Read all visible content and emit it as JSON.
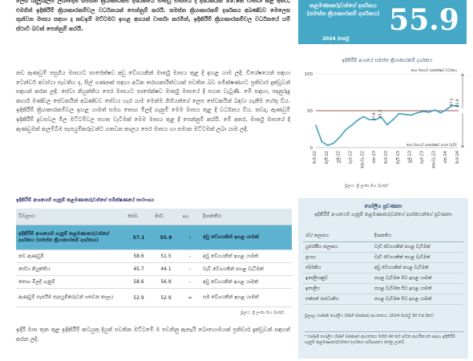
{
  "paragraphs": {
    "p1": "ලෙස බැලූබැල්ම ලබාදෙන සමස්ත ක්‍රියාකාරකම් දර්ශකයේ මාර්තු මාසයේ දී දර්ශකයක 55.9ක් වාර්තා කළ අතර, එමගින් ඉදිකිරීම් ක්‍රියාකාරකම්වල වර්ධනයක් පෙන්නුම් කරයි. සමස්ත ක්‍රියාකාරකම් දර්ශකය අඛණ්ඩව මෙලෙස තුන්වන මාසය සඳහා ද කඩඉම් මට්ටමට ඉහළ අගයක් වාර්තා කරමින්, ඉදිකිරීම් ක්‍රියාකාරකම්වල වර්ධනයේ යම් ස්ථාවී බවක් පෙන්නුම් කරයි.",
    "p2": "නව ඇණවුම් පසුගිය මාසයට සාපේක්ෂව අඩු වේගයකින් මාර්තු මාසය තුළ දී ඉහළ යාම ලදී. විශේෂයෙන් සඳහා ටෙන්ඩර් අවස්ථා පැවතිය ද, සිල් ගණනක් සඳහා අධික තරඟකාරිත්වයක් පවතින බව සමීක්ෂණයට ප්‍රතිචාර දැක්වූවන් සඳහන් කරන ලදී. සේවා නියුක්තිය පෙර මාසයට සාපේක්ෂව මාර්තු මාසයේ දී පහත වැටුණි. මේ සඳහා, පදනුරුදු කාර්ය මණ්ඩල සේවකයින් අඛණ්ඩව සේවය හැර යාම මෙන්ම ගිහියන්ගේ ලෙස සේවකයින් බඳවා ගැනීම හේතු විය. ඉදිකිරීම් ක්‍රියාකාරකම්වල ඉහළ යාමත් සමග තොග මිලදී ගැනුම් මෙම මාසය තුළ දී වර්ධනය විය. තවද, ඇණවුම් ඉදිකිරීම් දුවසවල මිල මට්ටම්වල පහත වැටීමක් මෙම මාසය තුළ දී පෙන්නුම් කරයි. මේ අතර, මාර්තු මාසයේ දී ඇණවුමක් කලම්බීම සැපයුම්කරුවන්ට ගතවන කාලය පෙර මාසය හා සමාන මට්ටමක් ලබා යාම ලදී.",
    "p3": "ඉදිරි මාස තුන තුළ ඉදිකිරීම් කටයුතු දියුත් පවතින මට්ටමේ ම පවතිනු ඇතැයි බොහොමයක් ප්‍රතිචාර දැක්වූවන් සඳහන් කරන ලදී."
  },
  "table": {
    "title": "ඉදිකිරීම් අංශයෙහි ගැනුම් කළමණාකරුවන්ගේ සමීක්ෂණයේ සාරාංශය",
    "headers": [
      "විචල්‍යය",
      "පෙබ.",
      "මාර්.",
      "+/-",
      "දිශානතිය"
    ],
    "rows": [
      [
        "ඉදිකිරීම් අංශයෙහි ගැනුම් කළමණාකරුවන්ගේ දර්ශකය (සමස්ත ක්‍රියාකාරකම් දර්ශකය)",
        "57.1",
        "55.9",
        "-",
        "අඩු වේගයකින් ඉහළ යාමක්"
      ],
      [
        "නව ඇණවුම්",
        "58.6",
        "51.5",
        "-",
        "අඩු වේගයකින් ඉහළ යාමක්"
      ],
      [
        "සේවා නියුක්තිය",
        "45.7",
        "44.1",
        "-",
        "වැඩි වේගයකින් පහළ වැටීමක්"
      ],
      [
        "තොග මිලදී ගැනුම්",
        "58.6",
        "56.9",
        "-",
        "අඩු වේගයකින් ඉහළ යාමක්"
      ],
      [
        "ඇණවුම් සැපයීම සැපයුම්කරුවන් ගතවන කාලය",
        "52.9",
        "52.9",
        "=",
        "සම වේගයකින් ඉහළ යාමක්"
      ]
    ],
    "source": "මූලය: ශ්‍රී ලංකා මහ බැංකුව"
  },
  "callout": {
    "title": "කළමණාකරුවන්ගේ දර්ශකය (සමස්ත ක්‍රියාකාරකම් දර්ශකය)",
    "date": "2024 මාර්තු",
    "value": "55.9"
  },
  "chart_data": {
    "type": "line",
    "title": "ඉදිකිරීම් අංශයේ සමස්ත ක්‍රියාකාරකම් දර්ශකය",
    "x": [
      "මාර්-22",
      "අප්‍රේ-22",
      "මැයි-22",
      "ජූනි-22",
      "ජූලි-22",
      "අගෝ-22",
      "සැප්-22",
      "ඔක්-22",
      "නොවැ-22",
      "දෙසැ-22",
      "ජන-23",
      "පෙබ-23",
      "මාර්-23",
      "අප්‍රේ-23",
      "මැයි-23",
      "ජූනි-23",
      "ජූලි-23",
      "අගෝ-23",
      "සැප්-23",
      "ඔක්-23",
      "නොවැ-23",
      "දෙසැ-23",
      "ජන-24",
      "පෙබ-24",
      "මාර්-24"
    ],
    "tick_labels": [
      "මාර්-22",
      "මැයි-22",
      "ජූලි-22",
      "සැප්-22",
      "නොවැ-22",
      "ජන-23",
      "මාර්-23",
      "මැයි-23",
      "ජූලි-23",
      "සැප්-23",
      "නොවැ-23",
      "ජන-24",
      "මාර්-24"
    ],
    "values": [
      30,
      8,
      3,
      6,
      14,
      24,
      30,
      37,
      42,
      38,
      37.8,
      41.3,
      31,
      38,
      46,
      45,
      44,
      47,
      49,
      48,
      51,
      47,
      52,
      57.1,
      55.9
    ],
    "threshold": 50,
    "ylim": [
      0,
      100
    ],
    "yticks": [
      0,
      50,
      100
    ],
    "annotations": [
      "37.8",
      "41.3",
      "57.1",
      "55.9"
    ],
    "upper_note": "පෙර මාසයට සාපේක්ෂව වර්ධනය",
    "lower_note": "පෙර මාසයට සාපේක්ෂව පහත වැටීම",
    "source": "මූලය: ශ්‍රී ලංකා මහ බැංකුව",
    "colors": {
      "line": "#3f9fbf",
      "threshold": "#7a2a2a",
      "axis": "#999999"
    }
  },
  "sidebox": {
    "title": "ගෝලීය ප්‍රවණතා",
    "subtitle": "ඉදිකිරීම් අංශයෙහි ගැනුම් කළමණාකරුවන්ගේ දර්ශකයන්ගේ ප්‍රවණතා",
    "headers": [
      "රට/ කලාපය",
      "දිශානතිය"
    ],
    "rows": [
      [
        "යුරෝපීය කලාපය",
        "වැඩි වේගයකින් පහළ වැටීමක්"
      ],
      [
        "ප්‍රංශය",
        "වැඩි වේගයකින් පහළ වැටීමක්"
      ],
      [
        "ජර්මනිය",
        "අඩු වේගයකින් පහළ වැටීමක්"
      ],
      [
        "ඉතාලියානුව",
        "පහළ වැටීමක සිට ඉහළ යාමක්"
      ],
      [
        "ඉතාලිය",
        "පහළ වැටීමක සිට ඉහළ යාමක්"
      ],
      [
        "එක්සත් රාජධානිය",
        "පහළ වැටීමක සිට ඉහළ යාමක්"
      ]
    ],
    "source": "මූලාශ්‍ර: එස්&පී ගෝලීය (S&P Global) ආයතනය, 2024 මාර්තු 30 වන දිනට",
    "note": "¹ එස්&පී ගෝලීය (S&P Global) ආයතනය මගින් 40 කට අධික ආර්ථිකයන් සඳහා ඉදිකිරීම් ගැනුම් කළමණාකරුවන්ගේ දර්ශකය සම්පාදනය කරනු ලැබේ."
  }
}
